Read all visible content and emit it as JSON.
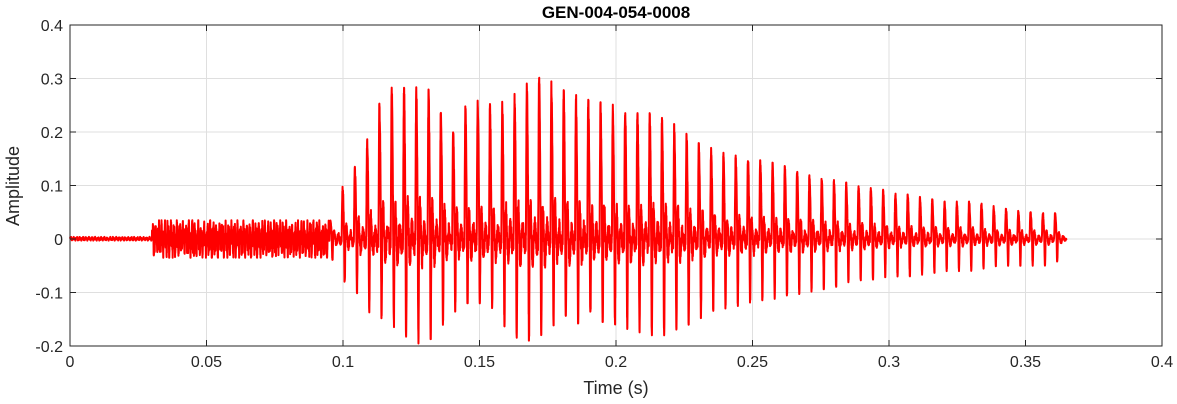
{
  "chart_data": {
    "type": "line",
    "title": "GEN-004-054-0008",
    "xlabel": "Time (s)",
    "ylabel": "Amplitude",
    "xlim": [
      0,
      0.4
    ],
    "ylim": [
      -0.2,
      0.4
    ],
    "x_ticks": [
      0,
      0.05,
      0.1,
      0.15,
      0.2,
      0.25,
      0.3,
      0.35,
      0.4
    ],
    "x_tick_labels": [
      "0",
      "0.05",
      "0.1",
      "0.15",
      "0.2",
      "0.25",
      "0.3",
      "0.35",
      "0.4"
    ],
    "y_ticks": [
      -0.2,
      -0.1,
      0,
      0.1,
      0.2,
      0.3,
      0.4
    ],
    "y_tick_labels": [
      "-0.2",
      "-0.1",
      "0",
      "0.1",
      "0.2",
      "0.3",
      "0.4"
    ],
    "grid": true,
    "box": true,
    "colors": {
      "line": "#ff0000",
      "axes": "#262626",
      "grid": "#dfdfdf",
      "background": "#ffffff"
    },
    "series": [
      {
        "signal_end_s": 0.365,
        "segments": [
          {
            "from_s": 0.0,
            "to_s": 0.03,
            "style": "noise",
            "min": -0.003,
            "max": 0.004
          },
          {
            "from_s": 0.03,
            "to_s": 0.095,
            "style": "noise",
            "min": -0.035,
            "max": 0.035
          },
          {
            "from_s": 0.095,
            "to_s": 0.365,
            "style": "periodic",
            "period_s": 0.0045
          }
        ],
        "peaks": [
          [
            0.095,
            0.03,
            -0.03
          ],
          [
            0.1,
            0.1,
            -0.08
          ],
          [
            0.105,
            0.14,
            -0.1
          ],
          [
            0.11,
            0.2,
            -0.14
          ],
          [
            0.115,
            0.28,
            -0.15
          ],
          [
            0.12,
            0.285,
            -0.17
          ],
          [
            0.125,
            0.28,
            -0.19
          ],
          [
            0.13,
            0.29,
            -0.2
          ],
          [
            0.135,
            0.25,
            -0.17
          ],
          [
            0.14,
            0.2,
            -0.14
          ],
          [
            0.145,
            0.25,
            -0.12
          ],
          [
            0.15,
            0.26,
            -0.12
          ],
          [
            0.155,
            0.25,
            -0.13
          ],
          [
            0.16,
            0.26,
            -0.17
          ],
          [
            0.165,
            0.28,
            -0.19
          ],
          [
            0.17,
            0.305,
            -0.19
          ],
          [
            0.175,
            0.3,
            -0.17
          ],
          [
            0.18,
            0.28,
            -0.15
          ],
          [
            0.185,
            0.27,
            -0.16
          ],
          [
            0.19,
            0.26,
            -0.15
          ],
          [
            0.2,
            0.25,
            -0.16
          ],
          [
            0.21,
            0.24,
            -0.18
          ],
          [
            0.22,
            0.22,
            -0.18
          ],
          [
            0.23,
            0.18,
            -0.15
          ],
          [
            0.24,
            0.16,
            -0.13
          ],
          [
            0.25,
            0.15,
            -0.12
          ],
          [
            0.26,
            0.14,
            -0.11
          ],
          [
            0.27,
            0.12,
            -0.1
          ],
          [
            0.28,
            0.11,
            -0.09
          ],
          [
            0.29,
            0.1,
            -0.08
          ],
          [
            0.3,
            0.09,
            -0.07
          ],
          [
            0.31,
            0.08,
            -0.07
          ],
          [
            0.32,
            0.07,
            -0.06
          ],
          [
            0.33,
            0.07,
            -0.06
          ],
          [
            0.34,
            0.06,
            -0.05
          ],
          [
            0.35,
            0.05,
            -0.05
          ],
          [
            0.36,
            0.05,
            -0.05
          ],
          [
            0.365,
            0.04,
            -0.03
          ]
        ]
      }
    ]
  }
}
